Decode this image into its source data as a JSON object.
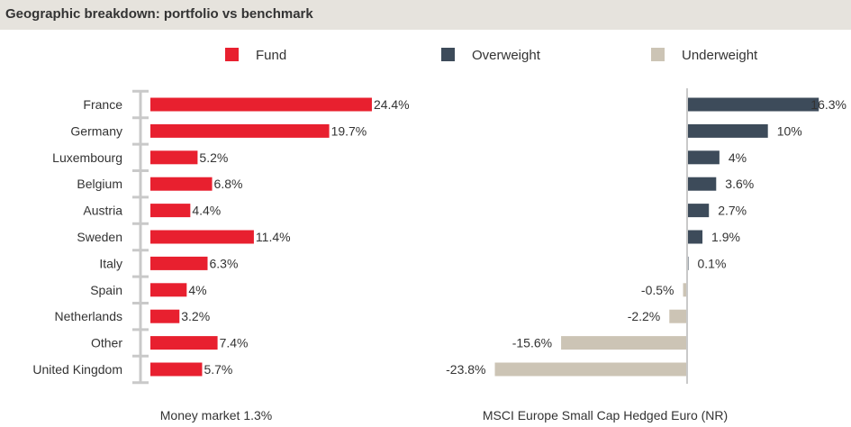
{
  "title": "Geographic breakdown: portfolio vs benchmark",
  "colors": {
    "fund": "#e8202f",
    "overweight": "#3d4b5a",
    "underweight": "#ccc4b5",
    "axis": "#c9c9c9"
  },
  "legend": [
    {
      "label": "Fund",
      "color": "#e8202f"
    },
    {
      "label": "Overweight",
      "color": "#3d4b5a"
    },
    {
      "label": "Underweight",
      "color": "#ccc4b5"
    }
  ],
  "chart_data": [
    {
      "type": "bar",
      "orientation": "horizontal",
      "categories": [
        "France",
        "Germany",
        "Luxembourg",
        "Belgium",
        "Austria",
        "Sweden",
        "Italy",
        "Spain",
        "Netherlands",
        "Other",
        "United Kingdom"
      ],
      "series": [
        {
          "name": "Fund",
          "values": [
            24.4,
            19.7,
            5.2,
            6.8,
            4.4,
            11.4,
            6.3,
            4,
            3.2,
            7.4,
            5.7
          ]
        }
      ],
      "data_labels": [
        "24.4%",
        "19.7%",
        "5.2%",
        "6.8%",
        "4.4%",
        "11.4%",
        "6.3%",
        "4%",
        "3.2%",
        "7.4%",
        "5.7%"
      ],
      "footnote": "Money market 1.3%",
      "xlim": [
        0,
        25
      ]
    },
    {
      "type": "bar",
      "orientation": "horizontal",
      "categories": [
        "France",
        "Germany",
        "Luxembourg",
        "Belgium",
        "Austria",
        "Sweden",
        "Italy",
        "Spain",
        "Netherlands",
        "Other",
        "United Kingdom"
      ],
      "series": [
        {
          "name": "Overweight / Underweight",
          "values": [
            16.3,
            10,
            4,
            3.6,
            2.7,
            1.9,
            0.1,
            -0.5,
            -2.2,
            -15.6,
            -23.8
          ]
        }
      ],
      "data_labels": [
        "16.3%",
        "10%",
        "4%",
        "3.6%",
        "2.7%",
        "1.9%",
        "0.1%",
        "-0.5%",
        "-2.2%",
        "-15.6%",
        "-23.8%"
      ],
      "footnote": "MSCI Europe Small Cap Hedged Euro (NR)",
      "xlim": [
        -24,
        17
      ]
    }
  ]
}
